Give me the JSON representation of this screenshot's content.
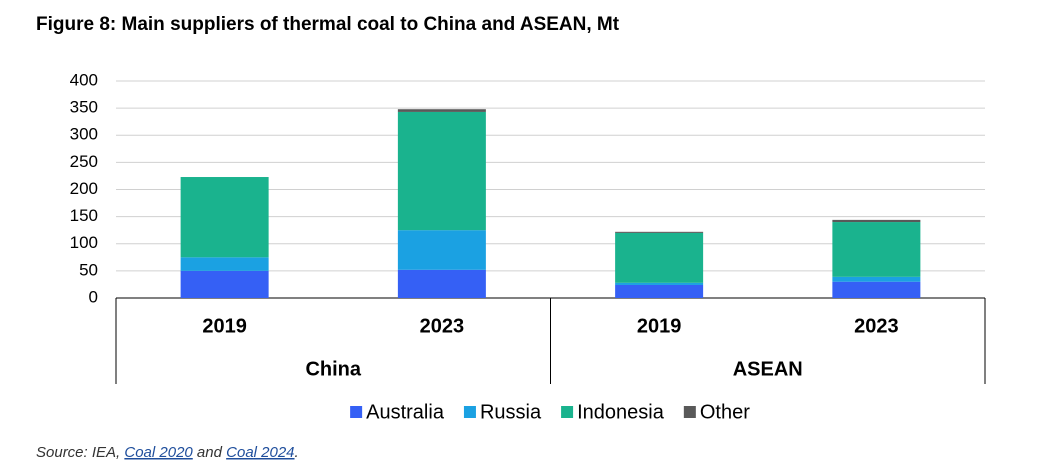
{
  "chart_data": {
    "type": "stacked_bar",
    "title": "Figure 8: Main suppliers of thermal coal to China and ASEAN, Mt",
    "categories": [
      "2019",
      "2023",
      "2019",
      "2023"
    ],
    "groups": [
      "China",
      "ASEAN"
    ],
    "series": [
      {
        "name": "Australia",
        "color": "#3560f5",
        "values": [
          50,
          52,
          24,
          30
        ]
      },
      {
        "name": "Russia",
        "color": "#1ba1e2",
        "values": [
          25,
          73,
          4,
          9
        ]
      },
      {
        "name": "Indonesia",
        "color": "#1ab38e",
        "values": [
          148,
          218,
          92,
          101
        ]
      },
      {
        "name": "Other",
        "color": "#595959",
        "values": [
          0,
          5,
          2,
          4
        ]
      }
    ],
    "ylim": [
      0,
      400
    ],
    "yticks": [
      0,
      50,
      100,
      150,
      200,
      250,
      300,
      350,
      400
    ],
    "grid": true,
    "source": [
      "Source: IEA, ",
      "Coal 2020",
      " and ",
      "Coal 2024",
      "."
    ]
  }
}
